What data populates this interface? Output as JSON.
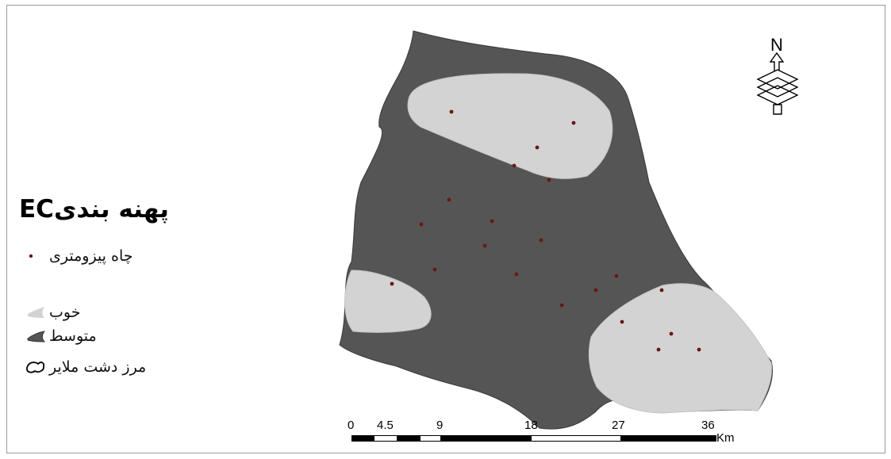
{
  "legend": {
    "title": "پهنه بندیEC",
    "items": [
      {
        "label": "چاه پیزومتری",
        "symbol": "dot",
        "color": "#6e1515"
      },
      {
        "label": "خوب",
        "symbol": "patch",
        "color": "#d3d3d3"
      },
      {
        "label": "متوسط",
        "symbol": "patch",
        "color": "#555555"
      },
      {
        "label": "مرز دشت ملایر",
        "symbol": "outline",
        "color": "#ffffff"
      }
    ]
  },
  "north_arrow": {
    "label": "N"
  },
  "scale_bar": {
    "tick_labels": [
      "0",
      "4.5",
      "9",
      "18",
      "27",
      "36"
    ],
    "unit": "Km"
  },
  "colors": {
    "plain_medium": "#555555",
    "zone_good": "#d3d3d3",
    "well": "#6e1515"
  },
  "wells_count": 21
}
